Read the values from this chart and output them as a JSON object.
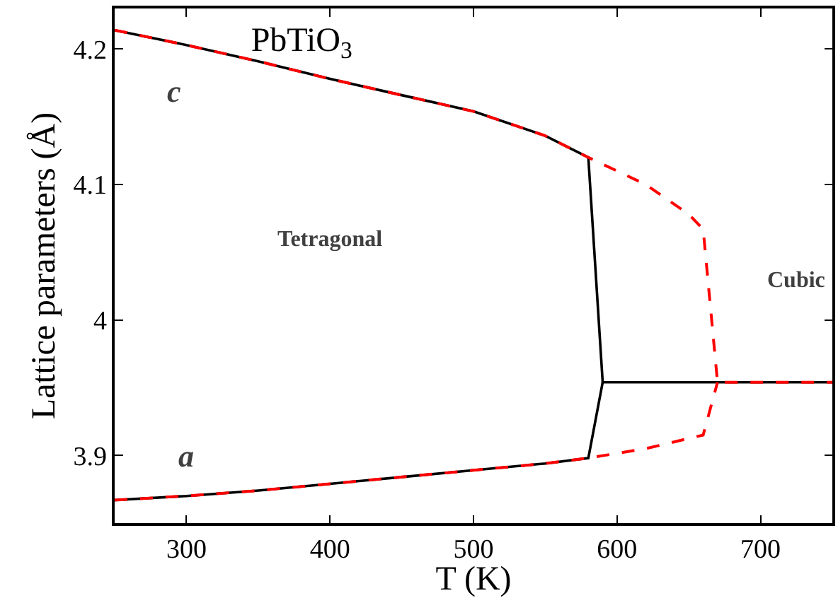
{
  "chart_data": {
    "type": "line",
    "title": "PbTiO$_{3}$",
    "xlabel": "T (K)",
    "ylabel": "Lattice parameters (Å)",
    "xlim": [
      250,
      750
    ],
    "xticks": [
      300,
      400,
      500,
      600,
      700
    ],
    "ylim": [
      3.85,
      4.23
    ],
    "yticks": [
      3.9,
      {
        "value": 4.0,
        "label": "4"
      },
      4.1,
      4.2
    ],
    "marker": "none",
    "series": [
      {
        "color": "#000000",
        "line_style": "solid",
        "x": [
          250,
          300,
          350,
          400,
          450,
          500,
          550,
          580,
          590,
          750
        ],
        "values": [
          4.214,
          4.203,
          4.191,
          4.178,
          4.166,
          4.154,
          4.136,
          4.12,
          3.954,
          3.954
        ]
      },
      {
        "color": "#000000",
        "line_style": "solid",
        "x": [
          250,
          300,
          350,
          400,
          450,
          500,
          550,
          580,
          590
        ],
        "values": [
          3.867,
          3.87,
          3.874,
          3.879,
          3.884,
          3.889,
          3.894,
          3.898,
          3.954
        ]
      },
      {
        "color": "#ff0000",
        "line_style": "dashed",
        "x": [
          250,
          300,
          350,
          400,
          450,
          500,
          550,
          580,
          620,
          650,
          660,
          670,
          750
        ],
        "values": [
          4.214,
          4.203,
          4.191,
          4.178,
          4.166,
          4.154,
          4.136,
          4.12,
          4.1,
          4.078,
          4.067,
          3.954,
          3.954
        ]
      },
      {
        "color": "#ff0000",
        "line_style": "dashed",
        "x": [
          250,
          300,
          350,
          400,
          450,
          500,
          550,
          580,
          620,
          660,
          670
        ],
        "values": [
          3.867,
          3.87,
          3.874,
          3.879,
          3.884,
          3.889,
          3.894,
          3.898,
          3.905,
          3.915,
          3.954
        ]
      }
    ],
    "annotations": [
      "c",
      "a",
      "Tetragonal",
      "Cubic"
    ]
  }
}
